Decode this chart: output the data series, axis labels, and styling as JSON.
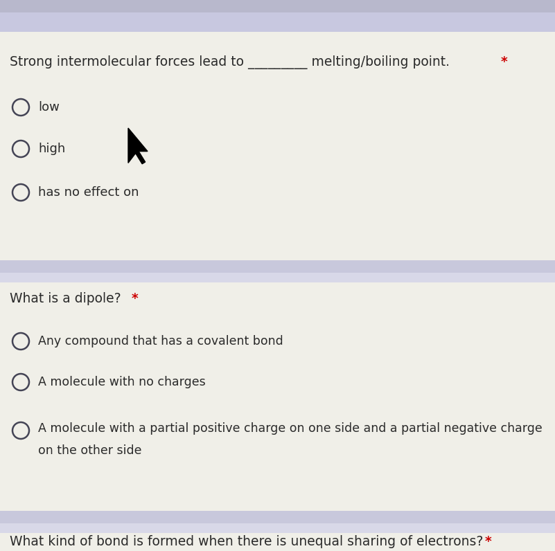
{
  "bg_color": "#d8d8e8",
  "content_bg": "#f0efe8",
  "separator_color": "#c0c0d8",
  "text_color": "#2a2a2a",
  "star_color": "#cc0000",
  "circle_color": "#444455",
  "q1_line1": "Strong intermolecular forces lead to _________ melting/boiling point.",
  "q1_star": "*",
  "q1_options": [
    "low",
    "high",
    "has no effect on"
  ],
  "q2_label": "What is a dipole?",
  "q2_star": "*",
  "q2_options": [
    "Any compound that has a covalent bond",
    "A molecule with no charges",
    "A molecule with a partial positive charge on one side and a partial negative charge",
    "on the other side"
  ],
  "q3_label": "What kind of bond is formed when there is unequal sharing of electrons?",
  "q3_star": "*",
  "figw": 8.01,
  "figh": 7.96,
  "dpi": 100
}
